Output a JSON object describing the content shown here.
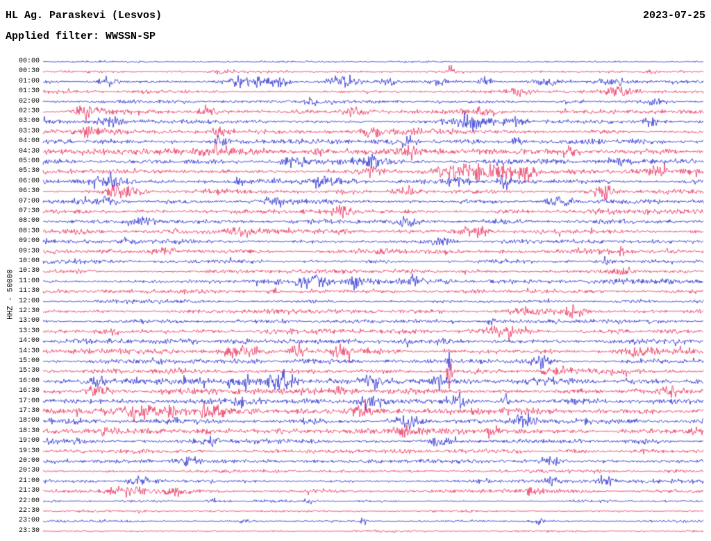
{
  "header": {
    "station": "HL Ag. Paraskevi (Lesvos)",
    "date": "2023-07-25",
    "filter": "Applied filter: WWSSN-SP"
  },
  "y_axis_label": "HHZ - 50000",
  "chart_data": {
    "type": "line",
    "subtype": "seismogram-helicorder",
    "title": "HL Ag. Paraskevi (Lesvos)",
    "date": "2023-07-25",
    "filter": "WWSSN-SP",
    "channel": "HHZ",
    "scale": 50000,
    "minutes_per_row": 30,
    "grid": false,
    "legend": "none",
    "trace_colors": {
      "blue": "#1016c8",
      "red": "#e6194b"
    },
    "rows": [
      {
        "t": "00:00",
        "c": "blue",
        "n": 1.2,
        "ev": []
      },
      {
        "t": "00:30",
        "c": "red",
        "n": 1.5,
        "ev": [
          [
            0.27,
            0.015,
            4
          ],
          [
            0.62,
            0.01,
            4
          ],
          [
            0.92,
            0.01,
            3
          ]
        ]
      },
      {
        "t": "01:00",
        "c": "blue",
        "n": 2.2,
        "ev": [
          [
            0.1,
            0.015,
            6
          ],
          [
            0.31,
            0.03,
            10
          ],
          [
            0.36,
            0.015,
            8
          ],
          [
            0.455,
            0.02,
            9
          ],
          [
            0.52,
            0.015,
            6
          ],
          [
            0.6,
            0.01,
            8
          ],
          [
            0.67,
            0.01,
            6
          ],
          [
            0.76,
            0.015,
            6
          ],
          [
            0.86,
            0.02,
            5
          ]
        ]
      },
      {
        "t": "01:30",
        "c": "red",
        "n": 1.8,
        "ev": [
          [
            0.72,
            0.02,
            5
          ],
          [
            0.875,
            0.025,
            6
          ]
        ]
      },
      {
        "t": "02:00",
        "c": "blue",
        "n": 2.0,
        "ev": [
          [
            0.41,
            0.008,
            5
          ],
          [
            0.93,
            0.015,
            4
          ]
        ]
      },
      {
        "t": "02:30",
        "c": "red",
        "n": 2.5,
        "ev": [
          [
            0.065,
            0.02,
            9
          ],
          [
            0.25,
            0.02,
            5
          ],
          [
            0.47,
            0.015,
            6
          ],
          [
            0.67,
            0.02,
            5
          ]
        ]
      },
      {
        "t": "03:00",
        "c": "blue",
        "n": 3.0,
        "ev": [
          [
            0.1,
            0.02,
            6
          ],
          [
            0.65,
            0.03,
            9
          ],
          [
            0.72,
            0.01,
            7
          ],
          [
            0.92,
            0.01,
            5
          ]
        ]
      },
      {
        "t": "03:30",
        "c": "red",
        "n": 3.0,
        "ev": [
          [
            0.07,
            0.015,
            6
          ],
          [
            0.27,
            0.015,
            6
          ],
          [
            0.5,
            0.02,
            6
          ]
        ]
      },
      {
        "t": "04:00",
        "c": "blue",
        "n": 3.0,
        "ev": [
          [
            0.27,
            0.01,
            7
          ],
          [
            0.55,
            0.02,
            6
          ],
          [
            0.72,
            0.01,
            6
          ]
        ]
      },
      {
        "t": "04:30",
        "c": "red",
        "n": 3.2,
        "ev": [
          [
            0.26,
            0.03,
            8
          ],
          [
            0.42,
            0.02,
            6
          ],
          [
            0.55,
            0.02,
            6
          ],
          [
            0.8,
            0.02,
            5
          ]
        ]
      },
      {
        "t": "05:00",
        "c": "blue",
        "n": 3.0,
        "ev": [
          [
            0.38,
            0.02,
            6
          ],
          [
            0.5,
            0.03,
            7
          ],
          [
            0.87,
            0.01,
            5
          ]
        ]
      },
      {
        "t": "05:30",
        "c": "red",
        "n": 3.2,
        "ev": [
          [
            0.5,
            0.02,
            8
          ],
          [
            0.655,
            0.05,
            12
          ],
          [
            0.73,
            0.02,
            10
          ],
          [
            0.93,
            0.015,
            7
          ]
        ]
      },
      {
        "t": "06:00",
        "c": "blue",
        "n": 3.2,
        "ev": [
          [
            0.1,
            0.025,
            8
          ],
          [
            0.3,
            0.01,
            5
          ],
          [
            0.42,
            0.02,
            6
          ],
          [
            0.63,
            0.015,
            6
          ],
          [
            0.7,
            0.008,
            10
          ]
        ]
      },
      {
        "t": "06:30",
        "c": "red",
        "n": 3.0,
        "ev": [
          [
            0.12,
            0.03,
            7
          ],
          [
            0.55,
            0.02,
            5
          ],
          [
            0.85,
            0.02,
            6
          ]
        ]
      },
      {
        "t": "07:00",
        "c": "blue",
        "n": 3.0,
        "ev": [
          [
            0.1,
            0.02,
            7
          ],
          [
            0.35,
            0.015,
            5
          ],
          [
            0.78,
            0.02,
            6
          ]
        ]
      },
      {
        "t": "07:30",
        "c": "red",
        "n": 2.8,
        "ev": [
          [
            0.45,
            0.02,
            5
          ],
          [
            0.85,
            0.02,
            5
          ]
        ]
      },
      {
        "t": "08:00",
        "c": "blue",
        "n": 3.0,
        "ev": [
          [
            0.15,
            0.02,
            5
          ],
          [
            0.55,
            0.015,
            4
          ]
        ]
      },
      {
        "t": "08:30",
        "c": "red",
        "n": 3.0,
        "ev": [
          [
            0.3,
            0.02,
            5
          ],
          [
            0.65,
            0.02,
            5
          ]
        ]
      },
      {
        "t": "09:00",
        "c": "blue",
        "n": 2.8,
        "ev": [
          [
            0.6,
            0.02,
            5
          ],
          [
            0.13,
            0.01,
            4
          ]
        ]
      },
      {
        "t": "09:30",
        "c": "red",
        "n": 2.8,
        "ev": [
          [
            0.18,
            0.02,
            5
          ],
          [
            0.88,
            0.01,
            4
          ]
        ]
      },
      {
        "t": "10:00",
        "c": "blue",
        "n": 2.5,
        "ev": [
          [
            0.85,
            0.01,
            5
          ]
        ]
      },
      {
        "t": "10:30",
        "c": "red",
        "n": 2.5,
        "ev": [
          [
            0.88,
            0.015,
            6
          ]
        ]
      },
      {
        "t": "11:00",
        "c": "blue",
        "n": 2.8,
        "ev": [
          [
            0.41,
            0.02,
            9
          ],
          [
            0.47,
            0.015,
            7
          ],
          [
            0.56,
            0.015,
            7
          ]
        ]
      },
      {
        "t": "11:30",
        "c": "red",
        "n": 2.5,
        "ev": [
          [
            0.35,
            0.008,
            5
          ]
        ]
      },
      {
        "t": "12:00",
        "c": "blue",
        "n": 2.2,
        "ev": []
      },
      {
        "t": "12:30",
        "c": "red",
        "n": 2.5,
        "ev": [
          [
            0.73,
            0.025,
            6
          ],
          [
            0.8,
            0.02,
            6
          ]
        ]
      },
      {
        "t": "13:00",
        "c": "blue",
        "n": 2.2,
        "ev": [
          [
            0.68,
            0.008,
            4
          ]
        ]
      },
      {
        "t": "13:30",
        "c": "red",
        "n": 2.8,
        "ev": [
          [
            0.7,
            0.03,
            6
          ],
          [
            0.1,
            0.02,
            4
          ]
        ]
      },
      {
        "t": "14:00",
        "c": "blue",
        "n": 3.0,
        "ev": [
          [
            0.55,
            0.01,
            5
          ],
          [
            0.3,
            0.015,
            4
          ]
        ]
      },
      {
        "t": "14:30",
        "c": "red",
        "n": 3.5,
        "ev": [
          [
            0.3,
            0.03,
            7
          ],
          [
            0.385,
            0.01,
            10
          ],
          [
            0.45,
            0.02,
            7
          ],
          [
            0.9,
            0.025,
            7
          ]
        ]
      },
      {
        "t": "15:00",
        "c": "blue",
        "n": 3.2,
        "ev": [
          [
            0.615,
            0.003,
            20
          ],
          [
            0.75,
            0.02,
            6
          ]
        ]
      },
      {
        "t": "15:30",
        "c": "red",
        "n": 3.5,
        "ev": [
          [
            0.615,
            0.003,
            40
          ],
          [
            0.78,
            0.02,
            6
          ]
        ]
      },
      {
        "t": "16:00",
        "c": "blue",
        "n": 3.8,
        "ev": [
          [
            0.3,
            0.02,
            8
          ],
          [
            0.36,
            0.02,
            10
          ],
          [
            0.5,
            0.015,
            6
          ],
          [
            0.6,
            0.01,
            8
          ],
          [
            0.08,
            0.015,
            5
          ]
        ]
      },
      {
        "t": "16:30",
        "c": "red",
        "n": 3.5,
        "ev": [
          [
            0.08,
            0.02,
            6
          ],
          [
            0.45,
            0.02,
            6
          ],
          [
            0.95,
            0.01,
            5
          ]
        ]
      },
      {
        "t": "17:00",
        "c": "blue",
        "n": 3.8,
        "ev": [
          [
            0.3,
            0.02,
            6
          ],
          [
            0.5,
            0.025,
            7
          ],
          [
            0.63,
            0.012,
            10
          ],
          [
            0.7,
            0.008,
            7
          ]
        ]
      },
      {
        "t": "17:30",
        "c": "red",
        "n": 3.8,
        "ev": [
          [
            0.17,
            0.05,
            9
          ],
          [
            0.25,
            0.02,
            8
          ],
          [
            0.48,
            0.02,
            6
          ]
        ]
      },
      {
        "t": "18:00",
        "c": "blue",
        "n": 3.5,
        "ev": [
          [
            0.55,
            0.02,
            6
          ],
          [
            0.73,
            0.02,
            8
          ]
        ]
      },
      {
        "t": "18:30",
        "c": "red",
        "n": 3.5,
        "ev": [
          [
            0.1,
            0.02,
            6
          ],
          [
            0.55,
            0.015,
            6
          ],
          [
            0.68,
            0.01,
            6
          ]
        ]
      },
      {
        "t": "19:00",
        "c": "blue",
        "n": 3.0,
        "ev": [
          [
            0.25,
            0.02,
            5
          ],
          [
            0.6,
            0.008,
            5
          ]
        ]
      },
      {
        "t": "19:30",
        "c": "red",
        "n": 2.5,
        "ev": []
      },
      {
        "t": "20:00",
        "c": "blue",
        "n": 2.2,
        "ev": [
          [
            0.22,
            0.02,
            5
          ],
          [
            0.77,
            0.012,
            5
          ]
        ]
      },
      {
        "t": "20:30",
        "c": "red",
        "n": 1.8,
        "ev": []
      },
      {
        "t": "21:00",
        "c": "blue",
        "n": 2.2,
        "ev": [
          [
            0.15,
            0.02,
            5
          ],
          [
            0.77,
            0.01,
            8
          ],
          [
            0.85,
            0.01,
            5
          ]
        ]
      },
      {
        "t": "21:30",
        "c": "red",
        "n": 2.2,
        "ev": [
          [
            0.12,
            0.03,
            6
          ],
          [
            0.2,
            0.02,
            5
          ],
          [
            0.75,
            0.02,
            4
          ]
        ]
      },
      {
        "t": "22:00",
        "c": "blue",
        "n": 1.5,
        "ev": [
          [
            0.26,
            0.005,
            5
          ],
          [
            0.4,
            0.01,
            3
          ]
        ]
      },
      {
        "t": "22:30",
        "c": "red",
        "n": 1.3,
        "ev": []
      },
      {
        "t": "23:00",
        "c": "blue",
        "n": 1.5,
        "ev": [
          [
            0.485,
            0.004,
            10
          ],
          [
            0.3,
            0.01,
            3
          ],
          [
            0.75,
            0.01,
            3
          ]
        ]
      },
      {
        "t": "23:30",
        "c": "red",
        "n": 1.3,
        "ev": []
      }
    ]
  }
}
